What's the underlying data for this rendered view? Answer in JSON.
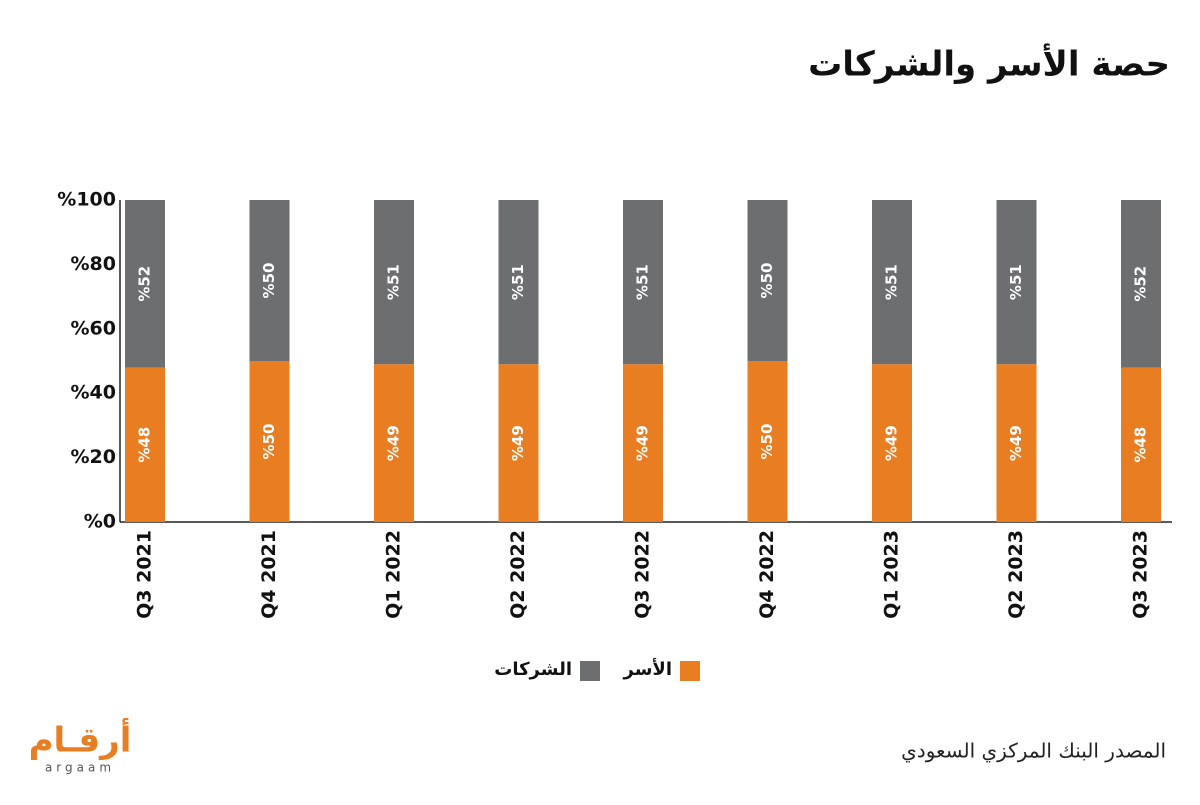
{
  "chart_data": {
    "type": "stacked_bar",
    "title": "حصة الأسر والشركات",
    "categories": [
      "Q3 2021",
      "Q4 2021",
      "Q1 2022",
      "Q2 2022",
      "Q3 2022",
      "Q4 2022",
      "Q1 2023",
      "Q2 2023",
      "Q3 2023"
    ],
    "series": [
      {
        "name": "الأسر",
        "color": "#e87d22",
        "values": [
          48,
          50,
          49,
          49,
          49,
          50,
          49,
          49,
          48
        ],
        "value_labels": [
          "%48",
          "%50",
          "%49",
          "%49",
          "%49",
          "%50",
          "%49",
          "%49",
          "%48"
        ]
      },
      {
        "name": "الشركات",
        "color": "#6d6e70",
        "values": [
          52,
          50,
          51,
          51,
          51,
          50,
          51,
          51,
          52
        ],
        "value_labels": [
          "%52",
          "%50",
          "%51",
          "%51",
          "%51",
          "%50",
          "%51",
          "%51",
          "%52"
        ]
      }
    ],
    "ylim": [
      0,
      100
    ],
    "yticks": [
      {
        "value": 0,
        "label": "%0"
      },
      {
        "value": 20,
        "label": "%20"
      },
      {
        "value": 40,
        "label": "%40"
      },
      {
        "value": 60,
        "label": "%60"
      },
      {
        "value": 80,
        "label": "%80"
      },
      {
        "value": 100,
        "label": "%100"
      }
    ],
    "grid": false,
    "source": "المصدر البنك المركزي السعودي",
    "logo": {
      "arabic": "أرقـام",
      "latin": "argaam"
    }
  }
}
